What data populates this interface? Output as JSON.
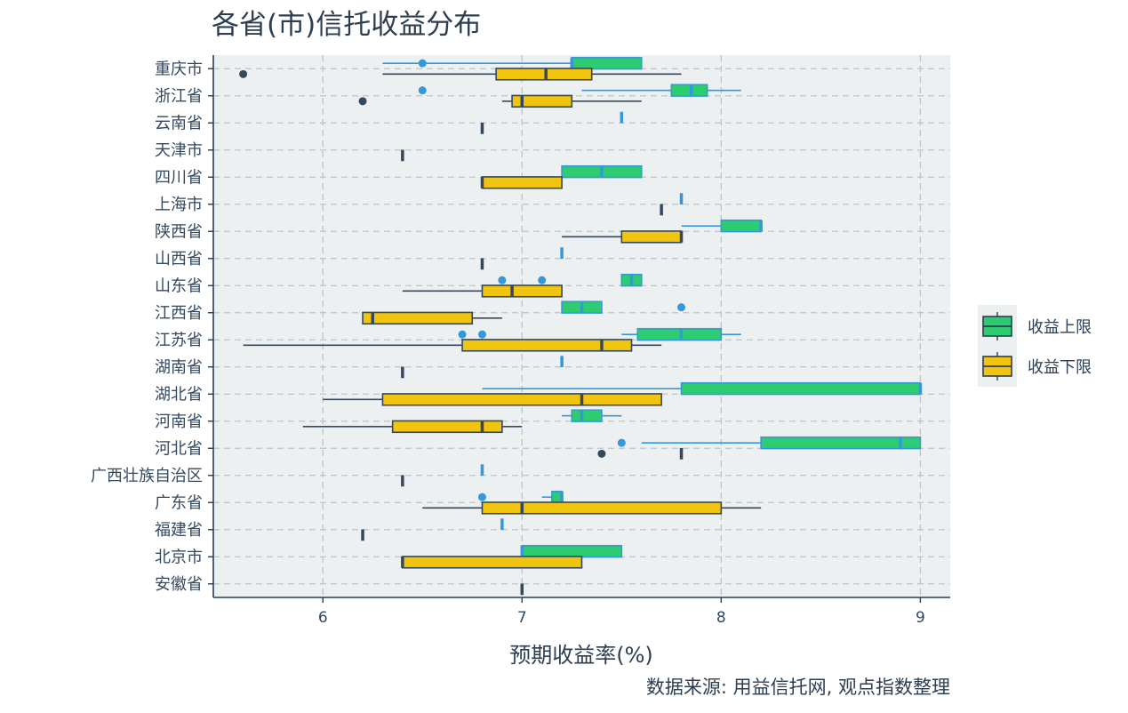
{
  "chart_data": {
    "type": "boxplot",
    "title": "各省(市)信托收益分布",
    "xlabel": "预期收益率(%)",
    "ylabel": "",
    "caption": "数据来源: 用益信托网, 观点指数整理",
    "xlim": [
      5.45,
      9.15
    ],
    "xticks": [
      "6",
      "7",
      "8",
      "9"
    ],
    "grid": true,
    "legend_position": "right",
    "categories": [
      "重庆市",
      "浙江省",
      "云南省",
      "天津市",
      "四川省",
      "上海市",
      "陕西省",
      "山西省",
      "山东省",
      "江西省",
      "江苏省",
      "湖南省",
      "湖北省",
      "河南省",
      "河北省",
      "广西壮族自治区",
      "广东省",
      "福建省",
      "北京市",
      "安徽省"
    ],
    "series": [
      {
        "name": "收益上限",
        "color": "#2ecc71",
        "outline": "#3498db",
        "boxes": [
          {
            "category": "重庆市",
            "whislo": 6.3,
            "q1": 7.25,
            "med": 7.25,
            "q3": 7.6,
            "whishi": 7.6,
            "outliers": [
              6.5
            ]
          },
          {
            "category": "浙江省",
            "whislo": 7.3,
            "q1": 7.75,
            "med": 7.85,
            "q3": 7.93,
            "whishi": 8.1,
            "outliers": [
              6.5
            ]
          },
          {
            "category": "云南省",
            "whislo": 7.5,
            "q1": 7.5,
            "med": 7.5,
            "q3": 7.5,
            "whishi": 7.5,
            "outliers": []
          },
          {
            "category": "四川省",
            "whislo": 7.2,
            "q1": 7.2,
            "med": 7.4,
            "q3": 7.6,
            "whishi": 7.6,
            "outliers": []
          },
          {
            "category": "上海市",
            "whislo": 7.8,
            "q1": 7.8,
            "med": 7.8,
            "q3": 7.8,
            "whishi": 7.8,
            "outliers": []
          },
          {
            "category": "陕西省",
            "whislo": 7.8,
            "q1": 8.0,
            "med": 8.2,
            "q3": 8.2,
            "whishi": 8.2,
            "outliers": []
          },
          {
            "category": "山西省",
            "whislo": 7.2,
            "q1": 7.2,
            "med": 7.2,
            "q3": 7.2,
            "whishi": 7.2,
            "outliers": []
          },
          {
            "category": "山东省",
            "whislo": 7.5,
            "q1": 7.5,
            "med": 7.55,
            "q3": 7.6,
            "whishi": 7.6,
            "outliers": [
              6.9,
              7.1
            ]
          },
          {
            "category": "江西省",
            "whislo": 7.2,
            "q1": 7.2,
            "med": 7.3,
            "q3": 7.4,
            "whishi": 7.4,
            "outliers": [
              7.8
            ]
          },
          {
            "category": "江苏省",
            "whislo": 7.5,
            "q1": 7.58,
            "med": 7.8,
            "q3": 8.0,
            "whishi": 8.1,
            "outliers": [
              6.7,
              6.8
            ]
          },
          {
            "category": "湖南省",
            "whislo": 7.2,
            "q1": 7.2,
            "med": 7.2,
            "q3": 7.2,
            "whishi": 7.2,
            "outliers": []
          },
          {
            "category": "湖北省",
            "whislo": 6.8,
            "q1": 7.8,
            "med": 9.0,
            "q3": 9.0,
            "whishi": 9.0,
            "outliers": []
          },
          {
            "category": "河南省",
            "whislo": 7.2,
            "q1": 7.25,
            "med": 7.3,
            "q3": 7.4,
            "whishi": 7.5,
            "outliers": []
          },
          {
            "category": "河北省",
            "whislo": 7.6,
            "q1": 8.2,
            "med": 8.9,
            "q3": 9.0,
            "whishi": 9.0,
            "outliers": [
              7.5
            ]
          },
          {
            "category": "广西壮族自治区",
            "whislo": 6.8,
            "q1": 6.8,
            "med": 6.8,
            "q3": 6.8,
            "whishi": 6.8,
            "outliers": []
          },
          {
            "category": "广东省",
            "whislo": 7.1,
            "q1": 7.15,
            "med": 7.2,
            "q3": 7.2,
            "whishi": 7.2,
            "outliers": [
              6.8
            ]
          },
          {
            "category": "福建省",
            "whislo": 6.9,
            "q1": 6.9,
            "med": 6.9,
            "q3": 6.9,
            "whishi": 6.9,
            "outliers": []
          },
          {
            "category": "北京市",
            "whislo": 7.0,
            "q1": 7.0,
            "med": 7.0,
            "q3": 7.5,
            "whishi": 7.5,
            "outliers": []
          }
        ]
      },
      {
        "name": "收益下限",
        "color": "#f1c40f",
        "outline": "#34495e",
        "boxes": [
          {
            "category": "重庆市",
            "whislo": 6.3,
            "q1": 6.87,
            "med": 7.12,
            "q3": 7.35,
            "whishi": 7.8,
            "outliers": [
              5.6
            ]
          },
          {
            "category": "浙江省",
            "whislo": 6.9,
            "q1": 6.95,
            "med": 7.0,
            "q3": 7.25,
            "whishi": 7.6,
            "outliers": [
              6.2
            ]
          },
          {
            "category": "云南省",
            "whislo": 6.8,
            "q1": 6.8,
            "med": 6.8,
            "q3": 6.8,
            "whishi": 6.8,
            "outliers": []
          },
          {
            "category": "天津市",
            "whislo": 6.4,
            "q1": 6.4,
            "med": 6.4,
            "q3": 6.4,
            "whishi": 6.4,
            "outliers": []
          },
          {
            "category": "四川省",
            "whislo": 6.8,
            "q1": 6.8,
            "med": 6.8,
            "q3": 7.2,
            "whishi": 7.2,
            "outliers": []
          },
          {
            "category": "上海市",
            "whislo": 7.7,
            "q1": 7.7,
            "med": 7.7,
            "q3": 7.7,
            "whishi": 7.7,
            "outliers": []
          },
          {
            "category": "陕西省",
            "whislo": 7.2,
            "q1": 7.5,
            "med": 7.8,
            "q3": 7.8,
            "whishi": 7.8,
            "outliers": []
          },
          {
            "category": "山西省",
            "whislo": 6.8,
            "q1": 6.8,
            "med": 6.8,
            "q3": 6.8,
            "whishi": 6.8,
            "outliers": []
          },
          {
            "category": "山东省",
            "whislo": 6.4,
            "q1": 6.8,
            "med": 6.95,
            "q3": 7.2,
            "whishi": 7.2,
            "outliers": []
          },
          {
            "category": "江西省",
            "whislo": 6.2,
            "q1": 6.2,
            "med": 6.25,
            "q3": 6.75,
            "whishi": 6.9,
            "outliers": []
          },
          {
            "category": "江苏省",
            "whislo": 5.6,
            "q1": 6.7,
            "med": 7.4,
            "q3": 7.55,
            "whishi": 7.7,
            "outliers": []
          },
          {
            "category": "湖南省",
            "whislo": 6.4,
            "q1": 6.4,
            "med": 6.4,
            "q3": 6.4,
            "whishi": 6.4,
            "outliers": []
          },
          {
            "category": "湖北省",
            "whislo": 6.0,
            "q1": 6.3,
            "med": 7.3,
            "q3": 7.7,
            "whishi": 7.7,
            "outliers": []
          },
          {
            "category": "河南省",
            "whislo": 5.9,
            "q1": 6.35,
            "med": 6.8,
            "q3": 6.9,
            "whishi": 7.0,
            "outliers": []
          },
          {
            "category": "河北省",
            "whislo": 7.8,
            "q1": 7.8,
            "med": 7.8,
            "q3": 7.8,
            "whishi": 7.8,
            "outliers": [
              7.4
            ]
          },
          {
            "category": "广西壮族自治区",
            "whislo": 6.4,
            "q1": 6.4,
            "med": 6.4,
            "q3": 6.4,
            "whishi": 6.4,
            "outliers": []
          },
          {
            "category": "广东省",
            "whislo": 6.5,
            "q1": 6.8,
            "med": 7.0,
            "q3": 8.0,
            "whishi": 8.2,
            "outliers": []
          },
          {
            "category": "福建省",
            "whislo": 6.2,
            "q1": 6.2,
            "med": 6.2,
            "q3": 6.2,
            "whishi": 6.2,
            "outliers": []
          },
          {
            "category": "北京市",
            "whislo": 6.4,
            "q1": 6.4,
            "med": 6.4,
            "q3": 7.3,
            "whishi": 7.3,
            "outliers": []
          },
          {
            "category": "安徽省",
            "whislo": 7.0,
            "q1": 7.0,
            "med": 7.0,
            "q3": 7.0,
            "whishi": 7.0,
            "outliers": []
          }
        ]
      }
    ]
  }
}
